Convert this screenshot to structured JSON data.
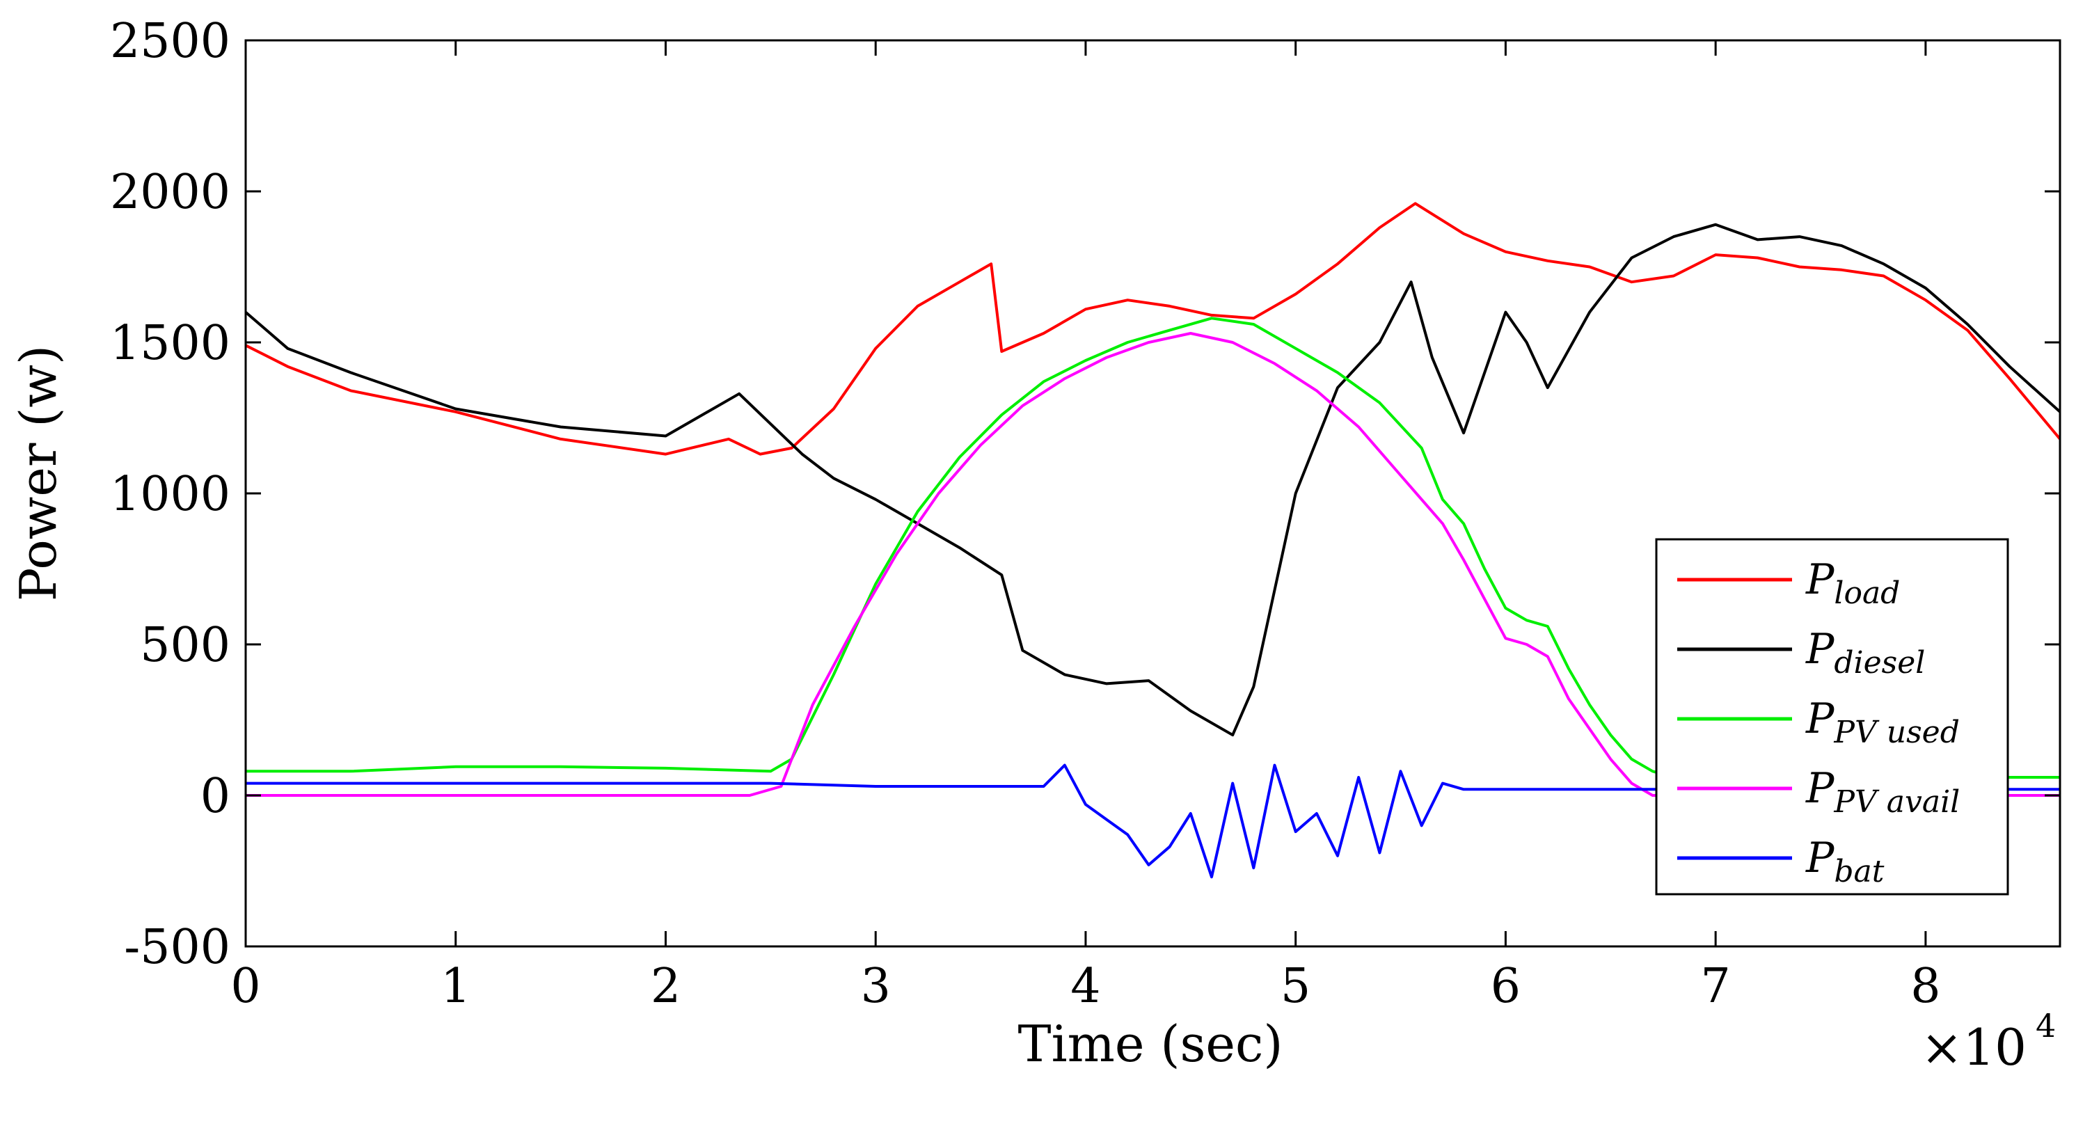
{
  "chart_data": {
    "type": "line",
    "xlabel": "Time (sec)",
    "ylabel": "Power (w)",
    "x_exponent_label": "×10",
    "x_exponent_power": "4",
    "xlim": [
      0,
      86400
    ],
    "ylim": [
      -500,
      2500
    ],
    "xticks": [
      0,
      1,
      2,
      3,
      4,
      5,
      6,
      7,
      8
    ],
    "yticks": [
      -500,
      0,
      500,
      1000,
      1500,
      2000,
      2500
    ],
    "ytick_labels": [
      "-500",
      "0",
      "500",
      "1000",
      "1500",
      "2000",
      "2500"
    ],
    "xtick_labels": [
      "0",
      "1",
      "2",
      "3",
      "4",
      "5",
      "6",
      "7",
      "8"
    ],
    "grid": false,
    "legend_position": "bottom-right",
    "series": [
      {
        "name": "P_load",
        "base": "P",
        "sub": "load",
        "color": "#ff0000",
        "x": [
          0,
          2000,
          5000,
          10000,
          15000,
          20000,
          23000,
          24500,
          26000,
          28000,
          30000,
          32000,
          34000,
          35500,
          36000,
          38000,
          40000,
          42000,
          44000,
          46000,
          48000,
          50000,
          52000,
          54000,
          55700,
          58000,
          60000,
          62000,
          64000,
          66000,
          68000,
          70000,
          72000,
          74000,
          76000,
          78000,
          80000,
          82000,
          84000,
          86400
        ],
        "y": [
          1490,
          1420,
          1340,
          1270,
          1180,
          1130,
          1180,
          1130,
          1150,
          1280,
          1480,
          1620,
          1700,
          1760,
          1470,
          1530,
          1610,
          1640,
          1620,
          1590,
          1580,
          1660,
          1760,
          1880,
          1960,
          1860,
          1800,
          1770,
          1750,
          1700,
          1720,
          1790,
          1780,
          1750,
          1740,
          1720,
          1640,
          1540,
          1380,
          1180
        ]
      },
      {
        "name": "P_diesel",
        "base": "P",
        "sub": "diesel",
        "color": "#000000",
        "x": [
          0,
          2000,
          5000,
          10000,
          15000,
          20000,
          23500,
          25000,
          26500,
          28000,
          30000,
          32000,
          34000,
          36000,
          37000,
          39000,
          41000,
          43000,
          45000,
          47000,
          48000,
          50000,
          52000,
          54000,
          55500,
          56500,
          58000,
          60000,
          61000,
          62000,
          64000,
          66000,
          68000,
          70000,
          72000,
          74000,
          76000,
          78000,
          80000,
          82000,
          84000,
          86400
        ],
        "y": [
          1600,
          1480,
          1400,
          1280,
          1220,
          1190,
          1330,
          1230,
          1130,
          1050,
          980,
          900,
          820,
          730,
          480,
          400,
          370,
          380,
          280,
          200,
          360,
          1000,
          1350,
          1500,
          1700,
          1450,
          1200,
          1600,
          1500,
          1350,
          1600,
          1780,
          1850,
          1890,
          1840,
          1850,
          1820,
          1760,
          1680,
          1560,
          1420,
          1270
        ]
      },
      {
        "name": "P_PV used",
        "base": "P",
        "sub": "PV used",
        "color": "#00ee00",
        "x": [
          0,
          5000,
          10000,
          15000,
          20000,
          25000,
          26000,
          28000,
          30000,
          32000,
          34000,
          36000,
          38000,
          40000,
          42000,
          44000,
          46000,
          48000,
          50000,
          52000,
          54000,
          56000,
          57000,
          58000,
          59000,
          60000,
          61000,
          62000,
          63000,
          64000,
          65000,
          66000,
          67000,
          68000,
          72000,
          76000,
          80000,
          84000,
          86400
        ],
        "y": [
          80,
          80,
          95,
          95,
          90,
          80,
          120,
          400,
          700,
          940,
          1120,
          1260,
          1370,
          1440,
          1500,
          1540,
          1580,
          1560,
          1480,
          1400,
          1300,
          1150,
          980,
          900,
          750,
          620,
          580,
          560,
          420,
          300,
          200,
          120,
          80,
          60,
          60,
          60,
          60,
          60,
          60
        ]
      },
      {
        "name": "P_PV avail",
        "base": "P",
        "sub": "PV avail",
        "color": "#ff00ff",
        "x": [
          0,
          5000,
          10000,
          15000,
          20000,
          24000,
          25500,
          27000,
          29000,
          31000,
          33000,
          35000,
          37000,
          39000,
          41000,
          43000,
          45000,
          47000,
          49000,
          51000,
          53000,
          55000,
          57000,
          58000,
          59000,
          60000,
          61000,
          62000,
          63000,
          64000,
          65000,
          66000,
          67000,
          70000,
          75000,
          80000,
          86400
        ],
        "y": [
          0,
          0,
          0,
          0,
          0,
          0,
          30,
          300,
          560,
          800,
          1000,
          1160,
          1290,
          1380,
          1450,
          1500,
          1530,
          1500,
          1430,
          1340,
          1220,
          1060,
          900,
          780,
          650,
          520,
          500,
          460,
          320,
          220,
          120,
          40,
          0,
          0,
          0,
          0,
          0
        ]
      },
      {
        "name": "P_bat",
        "base": "P",
        "sub": "bat",
        "color": "#0000ff",
        "x": [
          0,
          5000,
          10000,
          15000,
          20000,
          25000,
          30000,
          35000,
          38000,
          39000,
          40000,
          41000,
          42000,
          43000,
          44000,
          45000,
          46000,
          47000,
          48000,
          49000,
          50000,
          51000,
          52000,
          53000,
          54000,
          55000,
          56000,
          57000,
          58000,
          60000,
          65000,
          70000,
          75000,
          80000,
          86400
        ],
        "y": [
          40,
          40,
          40,
          40,
          40,
          40,
          30,
          30,
          30,
          100,
          -30,
          -80,
          -130,
          -230,
          -170,
          -60,
          -270,
          40,
          -240,
          100,
          -120,
          -60,
          -200,
          60,
          -190,
          80,
          -100,
          40,
          20,
          20,
          20,
          20,
          20,
          20,
          20
        ]
      }
    ]
  }
}
